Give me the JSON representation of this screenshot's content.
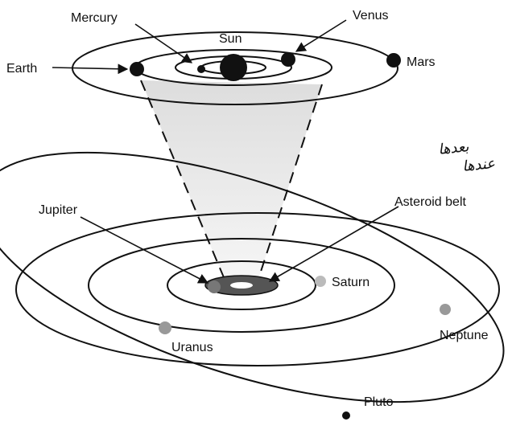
{
  "labels": {
    "mercury": "Mercury",
    "venus": "Venus",
    "sun": "Sun",
    "earth": "Earth",
    "mars": "Mars",
    "jupiter": "Jupiter",
    "asteroid_belt": "Asteroid belt",
    "saturn": "Saturn",
    "uranus": "Uranus",
    "neptune": "Neptune",
    "pluto": "Pluto"
  },
  "annotations": [
    "بعدها",
    "عندها"
  ]
}
